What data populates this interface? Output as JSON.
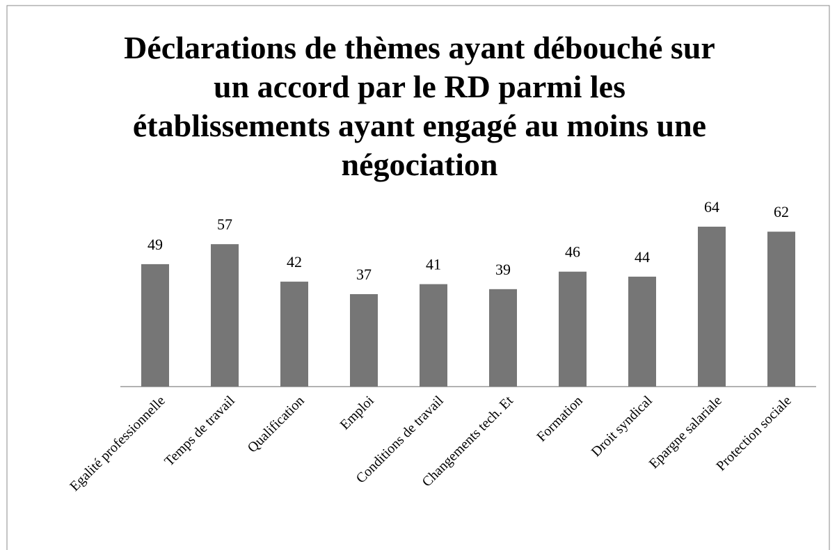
{
  "chart_data": {
    "type": "bar",
    "title": "Déclarations de thèmes ayant débouché sur un accord par le RD parmi les établissements ayant engagé au moins une négociation",
    "categories": [
      "Egalité professionnelle",
      "Temps de travail",
      "Qualification",
      "Emploi",
      "Conditions de travail",
      "Changements tech. Et",
      "Formation",
      "Droit syndical",
      "Epargne salariale",
      "Protection sociale"
    ],
    "values": [
      49,
      57,
      42,
      37,
      41,
      39,
      46,
      44,
      64,
      62
    ],
    "color": "#767676"
  }
}
